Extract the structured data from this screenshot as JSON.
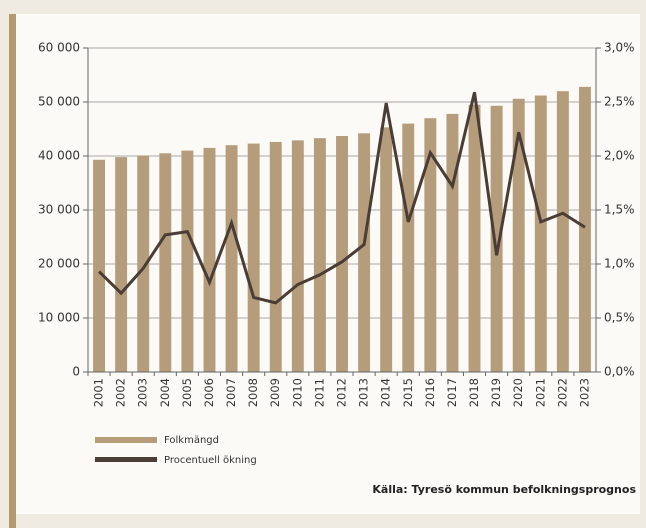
{
  "chart_data": {
    "type": "bar_line",
    "categories": [
      "2001",
      "2002",
      "2003",
      "2004",
      "2005",
      "2006",
      "2007",
      "2008",
      "2009",
      "2010",
      "2011",
      "2012",
      "2013",
      "2014",
      "2015",
      "2016",
      "2017",
      "2018",
      "2019",
      "2020",
      "2021",
      "2022",
      "2023"
    ],
    "series": [
      {
        "name": "Folkmängd",
        "color": "#b59c7b",
        "type": "bar",
        "axis": "y",
        "values": [
          39300,
          39800,
          40100,
          40500,
          41000,
          41500,
          42000,
          42300,
          42600,
          42900,
          43300,
          43700,
          44200,
          45300,
          46000,
          47000,
          47800,
          49500,
          49300,
          50600,
          51200,
          52000,
          52800
        ]
      },
      {
        "name": "Procentuell ökning",
        "color": "#4a3d35",
        "type": "line",
        "axis": "y2",
        "values": [
          0.93,
          0.73,
          0.96,
          1.27,
          1.3,
          0.83,
          1.38,
          0.69,
          0.64,
          0.81,
          0.9,
          1.02,
          1.18,
          2.49,
          1.39,
          2.03,
          1.72,
          2.59,
          1.08,
          2.22,
          1.39,
          1.47,
          1.34
        ]
      }
    ],
    "ylim": [
      0,
      60000
    ],
    "yticks": [
      0,
      {
        "value": 10000,
        "label": "10 000"
      },
      {
        "value": 20000,
        "label": "20 000"
      },
      {
        "value": 30000,
        "label": "30 000"
      },
      {
        "value": 40000,
        "label": "40 000"
      },
      {
        "value": 50000,
        "label": "50 000"
      },
      {
        "value": 60000,
        "label": "60 000"
      }
    ],
    "y2lim": [
      0,
      3
    ],
    "y2ticks": [
      {
        "value": 0,
        "label": "0,0%"
      },
      {
        "value": 0.5,
        "label": "0,5%"
      },
      {
        "value": 1,
        "label": "1,0%"
      },
      {
        "value": 1.5,
        "label": "1,5%"
      },
      {
        "value": 2,
        "label": "2,0%"
      },
      {
        "value": 2.5,
        "label": "2,5%"
      },
      {
        "value": 3,
        "label": "3,0%"
      }
    ],
    "grid": true,
    "source": "Källa: Tyresö kommun befolkningsprognos"
  }
}
